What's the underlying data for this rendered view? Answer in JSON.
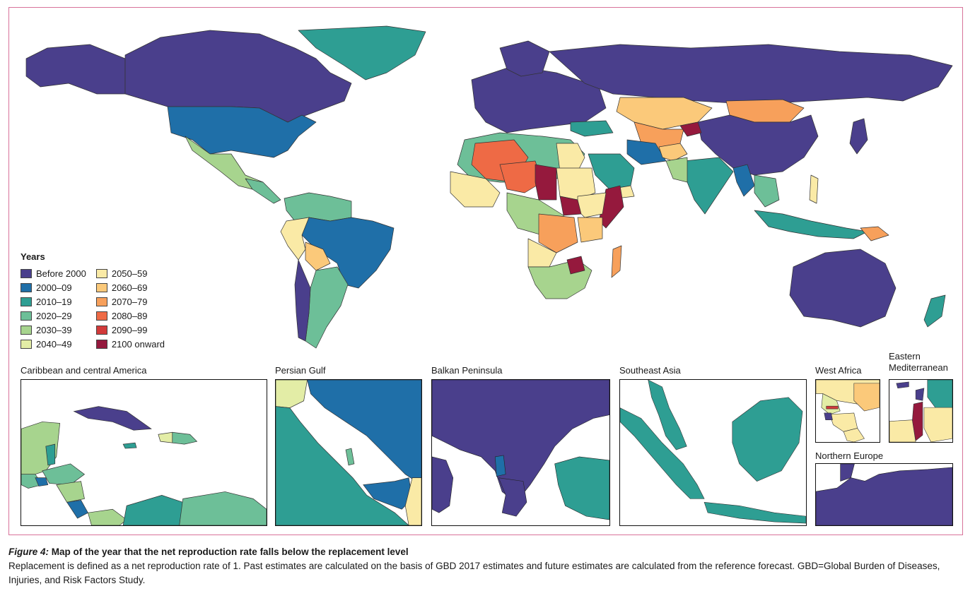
{
  "legend": {
    "title": "Years",
    "items": [
      {
        "label": "Before 2000",
        "color": "#4a3f8c"
      },
      {
        "label": "2000–09",
        "color": "#1f6fa8"
      },
      {
        "label": "2010–19",
        "color": "#2e9e93"
      },
      {
        "label": "2020–29",
        "color": "#6dbf98"
      },
      {
        "label": "2030–39",
        "color": "#a7d48e"
      },
      {
        "label": "2040–49",
        "color": "#e3eda6"
      },
      {
        "label": "2050–59",
        "color": "#faeaa6"
      },
      {
        "label": "2060–69",
        "color": "#fbc97a"
      },
      {
        "label": "2070–79",
        "color": "#f7a05b"
      },
      {
        "label": "2080–89",
        "color": "#ee6a45"
      },
      {
        "label": "2090–99",
        "color": "#d23a3a"
      },
      {
        "label": "2100 onward",
        "color": "#95193d"
      }
    ]
  },
  "insets": {
    "caribbean": "Caribbean and central America",
    "persian_gulf": "Persian Gulf",
    "balkan": "Balkan Peninsula",
    "southeast_asia": "Southeast Asia",
    "west_africa": "West Africa",
    "eastern_med": "Eastern\nMediterranean",
    "northern_europe": "Northern Europe"
  },
  "caption": {
    "label": "Figure 4:",
    "title": "Map of the year that the net reproduction rate falls below the replacement level",
    "body": "Replacement is defined as a net reproduction rate of 1. Past estimates are calculated on the basis of GBD 2017 estimates and future estimates are calculated from the reference forecast. GBD=Global Burden of Diseases, Injuries, and Risk Factors Study."
  }
}
